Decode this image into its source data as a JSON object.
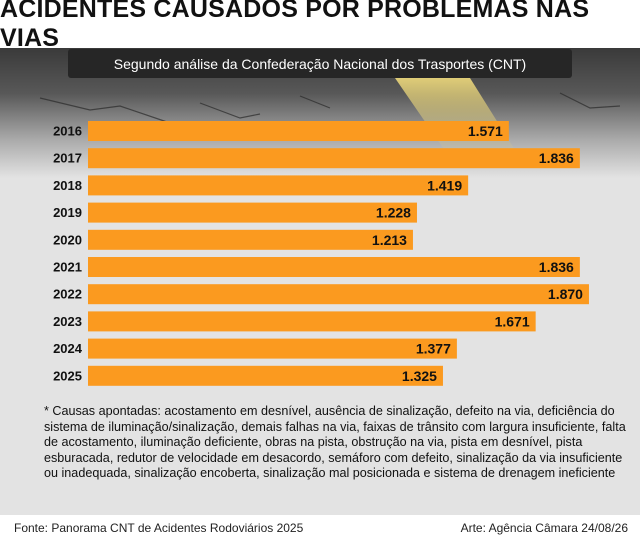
{
  "header": {
    "title": "ACIDENTES CAUSADOS POR PROBLEMAS NAS VIAS"
  },
  "subheader": {
    "text": "Segundo análise da Confederação Nacional dos Trasportes (CNT)"
  },
  "chart_data": {
    "type": "bar",
    "orientation": "horizontal",
    "title": "ACIDENTES CAUSADOS POR PROBLEMAS NAS VIAS",
    "subtitle": "Segundo análise da Confederação Nacional dos Trasportes (CNT)",
    "categories": [
      "2016",
      "2017",
      "2018",
      "2019",
      "2020",
      "2021",
      "2022",
      "2023",
      "2024",
      "2025"
    ],
    "values": [
      1571,
      1836,
      1419,
      1228,
      1213,
      1836,
      1870,
      1671,
      1377,
      1325
    ],
    "value_labels": [
      "1.571",
      "1.836",
      "1.419",
      "1.228",
      "1.213",
      "1.836",
      "1.870",
      "1.671",
      "1.377",
      "1.325"
    ],
    "xlim": [
      0,
      1900
    ],
    "grid": false,
    "legend": "none",
    "bar_color": "#fb9a1f"
  },
  "footnote": "* Causas apontadas: acostamento em desnível, ausência de sinalização, defeito na via, deficiência do sistema de iluminação/sinalização, demais falhas na via, faixas de trânsito com largura insuficiente, falta de acostamento, iluminação deficiente, obras na pista, obstrução na via, pista em desnível, pista esburacada, redutor de velocidade em desacordo, semáforo com defeito, sinalização da via insuficiente ou inadequada, sinalização encoberta, sinalização mal posicionada e sistema de drenagem ineficiente",
  "footer": {
    "source": "Fonte: Panorama CNT de Acidentes Rodoviários 2025",
    "credit": "Arte: Agência Câmara 24/08/26"
  }
}
